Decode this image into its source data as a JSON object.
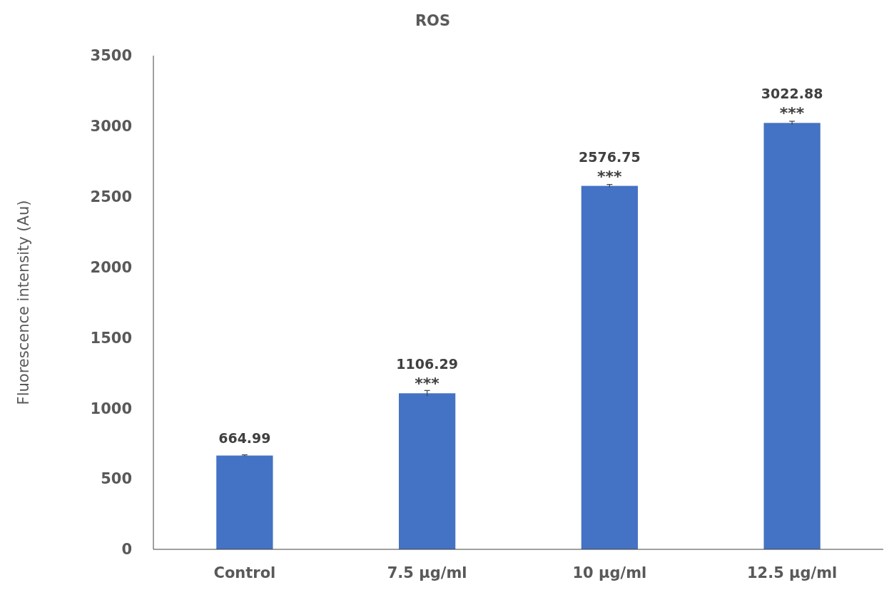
{
  "chart_data": {
    "type": "bar",
    "title": "ROS",
    "ylabel": "Fluorescence intensity (Au)",
    "categories": [
      "Control",
      "7.5 µg/ml",
      "10 µg/ml",
      "12.5 µg/ml"
    ],
    "values": [
      664.99,
      1106.29,
      2576.75,
      3022.88
    ],
    "errors": [
      5,
      20,
      10,
      12
    ],
    "color": "#4472c4",
    "data_labels": true,
    "ylim": [
      0,
      3500
    ],
    "yticks": [
      0,
      500,
      1000,
      1500,
      2000,
      2500,
      3000,
      3500
    ],
    "annotations": [
      {
        "text": "***",
        "x": "7.5 µg/ml",
        "y": 1106.29
      },
      {
        "text": "***",
        "x": "10 µg/ml",
        "y": 2576.75
      },
      {
        "text": "***",
        "x": "12.5 µg/ml",
        "y": 3022.88
      }
    ],
    "grid": false
  }
}
